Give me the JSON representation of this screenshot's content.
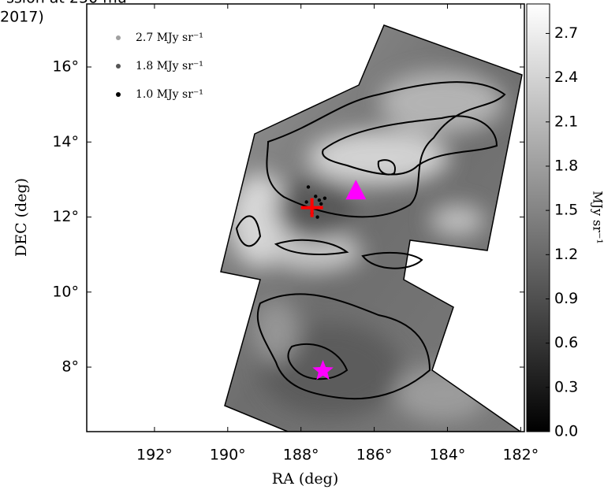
{
  "chart_data": {
    "type": "map",
    "title_lines": [
      "ssion at 250 mu",
      "2017)"
    ],
    "x_label": "RA (deg)",
    "y_label": "DEC (deg)",
    "xlim": [
      193.85,
      181.9
    ],
    "ylim": [
      6.28,
      17.68
    ],
    "xticks": [
      {
        "value": 192,
        "label": "192°"
      },
      {
        "value": 190,
        "label": "190°"
      },
      {
        "value": 188,
        "label": "188°"
      },
      {
        "value": 186,
        "label": "186°"
      },
      {
        "value": 184,
        "label": "184°"
      },
      {
        "value": 182,
        "label": "182°"
      }
    ],
    "yticks": [
      {
        "value": 8,
        "label": "8°"
      },
      {
        "value": 10,
        "label": "10°"
      },
      {
        "value": 12,
        "label": "12°"
      },
      {
        "value": 14,
        "label": "14°"
      },
      {
        "value": 16,
        "label": "16°"
      }
    ],
    "colorbar": {
      "label": "MJy sr⁻¹",
      "clim": [
        0,
        2.9
      ],
      "colors": [
        "#000000",
        "#ffffff"
      ],
      "ticks": [
        {
          "value": 0,
          "label": "0.0"
        },
        0.3,
        0.6,
        0.9,
        1.2,
        1.5,
        1.8,
        2.1,
        2.4,
        2.7
      ]
    },
    "legend": {
      "position": "upper left",
      "entries": [
        {
          "name": "2.7 MJy sr⁻¹",
          "color": "#a0a0a0"
        },
        {
          "name": "1.8 MJy sr⁻¹",
          "color": "#555555"
        },
        {
          "name": "1.0 MJy sr⁻¹",
          "color": "#000000"
        }
      ]
    },
    "markers": [
      {
        "shape": "plus",
        "color": "#ff0000",
        "x": 187.7,
        "y": 12.25
      },
      {
        "shape": "triangle",
        "color": "#ff00ff",
        "x": 186.5,
        "y": 12.7
      },
      {
        "shape": "star",
        "color": "#ff00ff",
        "x": 187.4,
        "y": 7.9
      }
    ],
    "points": {
      "color": "#000000",
      "x": [
        187.8,
        187.6,
        187.5,
        187.35,
        187.7,
        187.55,
        187.85,
        187.45
      ],
      "y": [
        12.8,
        12.55,
        12.45,
        12.5,
        12.1,
        12.0,
        12.4,
        12.35
      ]
    }
  }
}
